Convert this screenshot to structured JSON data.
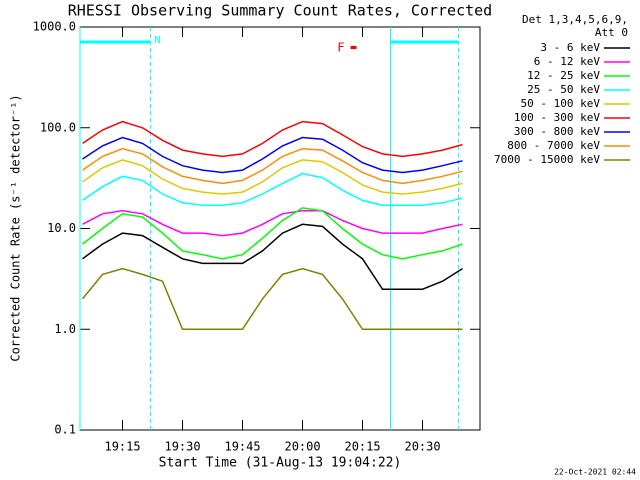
{
  "chart_data": {
    "type": "line",
    "title": "RHESSI Observing Summary Count Rates, Corrected",
    "xlabel": "Start Time (31-Aug-13 19:04:22)",
    "ylabel": "Corrected Count Rate (s⁻¹ detector⁻¹)",
    "legend_header": [
      "Det 1,3,4,5,6,9,",
      "Att 0"
    ],
    "footer": "22-Oct-2021 02:44",
    "log_y": true,
    "xlim": [
      "19:04:22",
      "20:44:22"
    ],
    "xticks": [
      "19:15",
      "19:30",
      "19:45",
      "20:00",
      "20:15",
      "20:30"
    ],
    "ylim": [
      0.1,
      1000
    ],
    "yticks": [
      0.1,
      {
        "value": 1,
        "label": "1.0"
      },
      {
        "value": 10,
        "label": "10.0"
      },
      {
        "value": 100,
        "label": "100.0"
      },
      {
        "value": 1000,
        "label": "1000.0"
      }
    ],
    "night": {
      "label": "N",
      "color": "#00ffff",
      "intervals": [
        [
          "19:04:22",
          "19:22:00"
        ],
        [
          "20:22:00",
          "20:39:00"
        ]
      ]
    },
    "flare": {
      "label": "F",
      "color": "#ff0000",
      "time": "20:12:00"
    },
    "x": [
      "19:05",
      "19:10",
      "19:15",
      "19:20",
      "19:25",
      "19:30",
      "19:35",
      "19:40",
      "19:45",
      "19:50",
      "19:55",
      "20:00",
      "20:05",
      "20:10",
      "20:15",
      "20:20",
      "20:25",
      "20:30",
      "20:35",
      "20:40"
    ],
    "series": [
      {
        "name": "3 - 6 keV",
        "color": "#000000",
        "values": [
          5,
          7,
          9,
          8.5,
          6.5,
          5,
          4.5,
          4.5,
          4.5,
          6,
          9,
          11,
          10.5,
          7,
          5,
          2.5,
          2.5,
          2.5,
          3,
          4
        ]
      },
      {
        "name": "6 - 12 keV",
        "color": "#ff00ff",
        "values": [
          11,
          14,
          15,
          14,
          11,
          9,
          9,
          8.5,
          9,
          11,
          14,
          15,
          15,
          12,
          10,
          9,
          9,
          9,
          10,
          11
        ]
      },
      {
        "name": "12 - 25 keV",
        "color": "#00ff00",
        "values": [
          7,
          10,
          14,
          13,
          9,
          6,
          5.5,
          5,
          5.5,
          8,
          12,
          16,
          15,
          10,
          7,
          5.5,
          5,
          5.5,
          6,
          7
        ]
      },
      {
        "name": "25 - 50 keV",
        "color": "#00ffff",
        "values": [
          19,
          26,
          33,
          30,
          22,
          18,
          17,
          17,
          18,
          22,
          28,
          35,
          32,
          24,
          19,
          17,
          17,
          17,
          18,
          20
        ]
      },
      {
        "name": "50 - 100 keV",
        "color": "#e0c800",
        "values": [
          29,
          40,
          48,
          42,
          31,
          25,
          23,
          22,
          23,
          29,
          40,
          48,
          46,
          36,
          27,
          23,
          22,
          23,
          25,
          28
        ]
      },
      {
        "name": "100 - 300 keV",
        "color": "#ff0000",
        "values": [
          70,
          95,
          115,
          100,
          75,
          60,
          55,
          52,
          55,
          70,
          95,
          115,
          110,
          85,
          65,
          55,
          52,
          55,
          60,
          68
        ]
      },
      {
        "name": "300 - 800 keV",
        "color": "#0000ff",
        "values": [
          49,
          66,
          80,
          70,
          52,
          42,
          38,
          36,
          38,
          49,
          66,
          80,
          77,
          60,
          45,
          38,
          36,
          38,
          42,
          47
        ]
      },
      {
        "name": "800 - 7000 keV",
        "color": "#ff8c00",
        "values": [
          38,
          52,
          62,
          55,
          41,
          33,
          30,
          28,
          30,
          38,
          52,
          62,
          60,
          47,
          36,
          30,
          28,
          30,
          33,
          37
        ]
      },
      {
        "name": "7000 - 15000 keV",
        "color": "#808000",
        "values": [
          2,
          3.5,
          4,
          3.5,
          3,
          1,
          1,
          1,
          1,
          2,
          3.5,
          4,
          3.5,
          2,
          1,
          1,
          1,
          1,
          1,
          1
        ]
      }
    ]
  }
}
